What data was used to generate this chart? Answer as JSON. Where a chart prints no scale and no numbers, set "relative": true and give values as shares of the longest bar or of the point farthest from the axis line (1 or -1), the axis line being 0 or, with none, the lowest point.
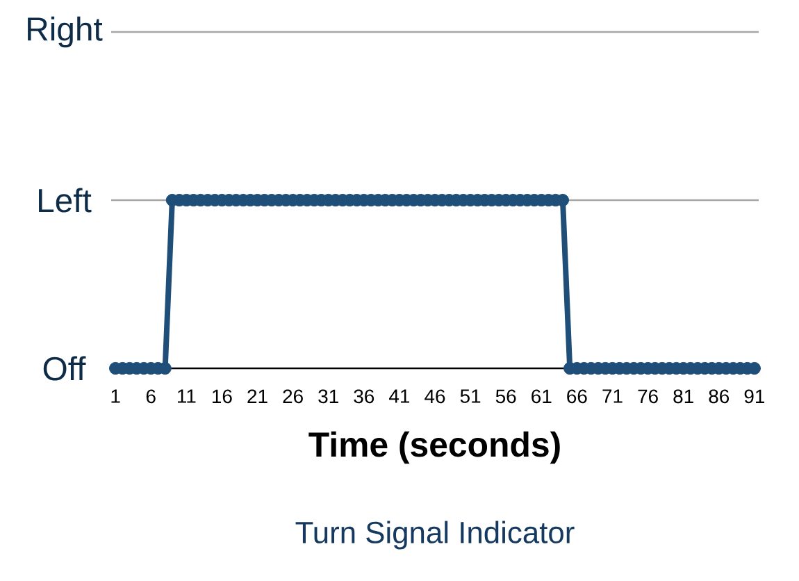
{
  "chart_data": {
    "type": "line",
    "title": "Turn Signal Indicator",
    "xlabel": "Time (seconds)",
    "categories": [
      "1",
      null,
      null,
      null,
      null,
      "6",
      null,
      null,
      null,
      null,
      "11",
      null,
      null,
      null,
      null,
      "16",
      null,
      null,
      null,
      null,
      "21",
      null,
      null,
      null,
      null,
      "26",
      null,
      null,
      null,
      null,
      "31",
      null,
      null,
      null,
      null,
      "36",
      null,
      null,
      null,
      null,
      "41",
      null,
      null,
      null,
      null,
      "46",
      null,
      null,
      null,
      null,
      "51",
      null,
      null,
      null,
      null,
      "56",
      null,
      null,
      null,
      null,
      "61",
      null,
      null,
      null,
      null,
      "66",
      null,
      null,
      null,
      null,
      "71",
      null,
      null,
      null,
      null,
      "76",
      null,
      null,
      null,
      null,
      "81",
      null,
      null,
      null,
      null,
      "86",
      null,
      null,
      null,
      null,
      "91"
    ],
    "values": [
      0,
      0,
      0,
      0,
      0,
      0,
      0,
      0,
      1,
      1,
      1,
      1,
      1,
      1,
      1,
      1,
      1,
      1,
      1,
      1,
      1,
      1,
      1,
      1,
      1,
      1,
      1,
      1,
      1,
      1,
      1,
      1,
      1,
      1,
      1,
      1,
      1,
      1,
      1,
      1,
      1,
      1,
      1,
      1,
      1,
      1,
      1,
      1,
      1,
      1,
      1,
      1,
      1,
      1,
      1,
      1,
      1,
      1,
      1,
      1,
      1,
      1,
      1,
      1,
      0,
      0,
      0,
      0,
      0,
      0,
      0,
      0,
      0,
      0,
      0,
      0,
      0,
      0,
      0,
      0,
      0,
      0,
      0,
      0,
      0,
      0,
      0,
      0,
      0,
      0,
      0
    ],
    "relative": true,
    "color": "#1f4e79",
    "marker": "circle",
    "line_style": "solid",
    "ref_lines": [
      {
        "axis": "y",
        "value": 1,
        "label": "Left",
        "color": "#a6a6a6"
      },
      {
        "axis": "y",
        "value": 2,
        "label": "Right",
        "color": "#a6a6a6"
      }
    ],
    "annotations": [
      "Off"
    ]
  }
}
